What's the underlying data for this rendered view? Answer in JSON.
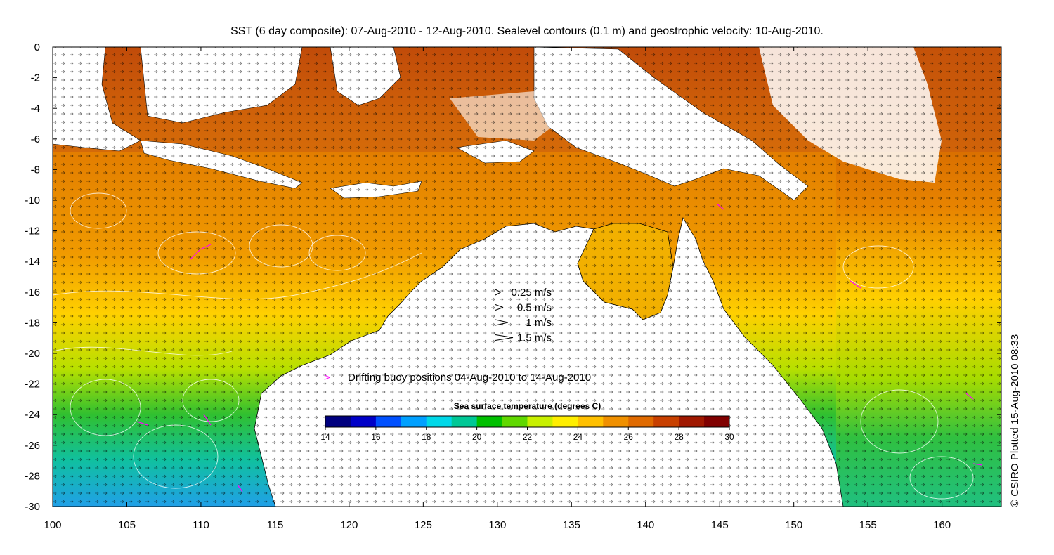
{
  "title": "SST (6 day composite): 07-Aug-2010 - 12-Aug-2010. Sealevel contours (0.1 m) and geostrophic velocity: 10-Aug-2010.",
  "x_axis": {
    "ticks": [
      "100",
      "105",
      "110",
      "115",
      "120",
      "125",
      "130",
      "135",
      "140",
      "145",
      "150",
      "155",
      "160"
    ]
  },
  "y_axis": {
    "ticks": [
      "0",
      "-2",
      "-4",
      "-6",
      "-8",
      "-10",
      "-12",
      "-14",
      "-16",
      "-18",
      "-20",
      "-22",
      "-24",
      "-26",
      "-28",
      "-30"
    ]
  },
  "velocity_legend": [
    {
      "label": "0.25 m/s",
      "speed": 0.25
    },
    {
      "label": "0.5 m/s",
      "speed": 0.5
    },
    {
      "label": "1 m/s",
      "speed": 1
    },
    {
      "label": "1.5 m/s",
      "speed": 1.5
    }
  ],
  "buoy_legend": {
    "symbol": ">",
    "label": "Drifting buoy positions 04-Aug-2010 to 14-Aug-2010",
    "color": "#ff00ff"
  },
  "colorbar": {
    "title": "Sea surface temperature (degrees C)",
    "min": 14,
    "max": 30,
    "ticks": [
      "14",
      "16",
      "18",
      "20",
      "22",
      "24",
      "26",
      "28",
      "30"
    ],
    "colors": [
      "#00007f",
      "#0000c8",
      "#0050ff",
      "#00a0ff",
      "#00d8e8",
      "#00c896",
      "#00c000",
      "#60d800",
      "#c8f000",
      "#ffee00",
      "#ffc000",
      "#f09000",
      "#e06a00",
      "#c84000",
      "#a01800",
      "#800000"
    ]
  },
  "credit": "© CSIRO Plotted 15-Aug-2010 08:33"
}
